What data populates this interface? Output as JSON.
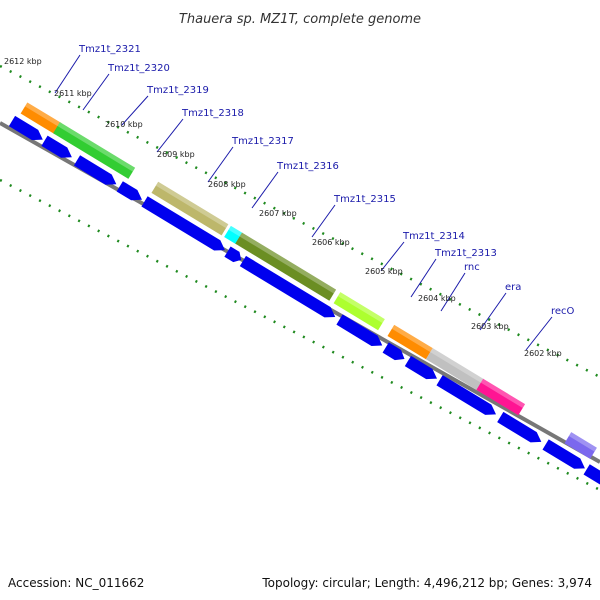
{
  "title": "Thauera sp. MZ1T, complete genome",
  "footer": {
    "accession": "Accession: NC_011662",
    "summary": "Topology: circular; Length: 4,496,212 bp; Genes: 3,974"
  },
  "colors": {
    "cds_arrow": "#0000ee",
    "backbone": "#777777",
    "gc_dots": "#1f8a1f",
    "label": "#1a1aaa"
  },
  "ticks": [
    "2612 kbp",
    "2611 kbp",
    "2610 kbp",
    "2609 kbp",
    "2608 kbp",
    "2607 kbp",
    "2606 kbp",
    "2605 kbp",
    "2604 kbp",
    "2603 kbp",
    "2602 kbp"
  ],
  "genes": [
    {
      "label": "Tmz1t_2321",
      "color": "#ff8c00"
    },
    {
      "label": "Tmz1t_2320",
      "color": "#32cd32"
    },
    {
      "label": "Tmz1t_2319",
      "color": "#32cd32"
    },
    {
      "label": "Tmz1t_2318",
      "color": "#bdb76b"
    },
    {
      "label": "Tmz1t_2317",
      "color": "#00ffff"
    },
    {
      "label": "Tmz1t_2316",
      "color": "#6b8e23"
    },
    {
      "label": "Tmz1t_2315",
      "color": "#adff2f"
    },
    {
      "label": "Tmz1t_2314",
      "color": "#ff8c00"
    },
    {
      "label": "Tmz1t_2313",
      "color": "#ff8c00"
    },
    {
      "label": "rnc",
      "color": "#c0c0c0"
    },
    {
      "label": "era",
      "color": "#ff1493"
    },
    {
      "label": "recO",
      "color": "#7b68ee"
    }
  ]
}
